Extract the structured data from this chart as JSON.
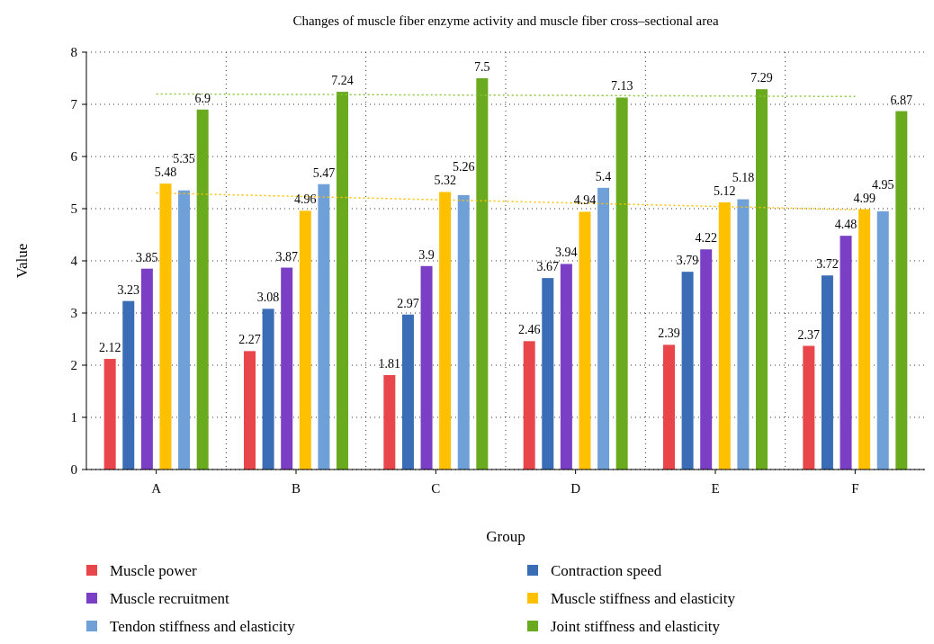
{
  "chart_data": {
    "type": "bar",
    "title": "Changes of muscle fiber enzyme activity and muscle fiber cross–sectional area",
    "xlabel": "Group",
    "ylabel": "Value",
    "categories": [
      "A",
      "B",
      "C",
      "D",
      "E",
      "F"
    ],
    "ylim": [
      0,
      8
    ],
    "yticks": [
      0,
      1,
      2,
      3,
      4,
      5,
      6,
      7,
      8
    ],
    "grid": true,
    "legend": "bottom",
    "series": [
      {
        "name": "Muscle power",
        "color": "#e8464a",
        "values": [
          2.12,
          2.27,
          1.81,
          2.46,
          2.39,
          2.37
        ],
        "value_labels": [
          "2.12",
          "2.27",
          "1.81",
          "2.46",
          "2.39",
          "2.37"
        ]
      },
      {
        "name": "Contraction speed",
        "color": "#3a6db5",
        "values": [
          3.23,
          3.08,
          2.97,
          3.67,
          3.79,
          3.72
        ],
        "value_labels": [
          "3.23",
          "3.08",
          "2.97",
          "3.67",
          "3.79",
          "3.72"
        ]
      },
      {
        "name": "Muscle recruitment",
        "color": "#7a3fc4",
        "values": [
          3.85,
          3.87,
          3.9,
          3.94,
          4.22,
          4.48
        ],
        "value_labels": [
          "3.85",
          "3.87",
          "3.9",
          "3.94",
          "4.22",
          "4.48"
        ]
      },
      {
        "name": "Muscle stiffness and elasticity",
        "color": "#ffc000",
        "values": [
          5.48,
          4.96,
          5.32,
          4.94,
          5.12,
          4.99
        ],
        "value_labels": [
          "5.48",
          "4.96",
          "5.32",
          "4.94",
          "5.12",
          "4.99"
        ]
      },
      {
        "name": "Tendon stiffness and elasticity",
        "color": "#6fa0d8",
        "values": [
          5.35,
          5.47,
          5.26,
          5.4,
          5.18,
          4.95
        ],
        "value_labels": [
          "5.35",
          "5.47",
          "5.26",
          "5.4",
          "5.18",
          "4.95"
        ]
      },
      {
        "name": "Joint stiffness and elasticity",
        "color": "#6aaa1e",
        "values": [
          6.9,
          7.24,
          7.5,
          7.13,
          7.29,
          6.87
        ],
        "value_labels": [
          "6.9",
          "7.24",
          "7.5",
          "7.13",
          "7.29",
          "6.87"
        ]
      },
      {
        "type": "line",
        "x": [
          "A",
          "F"
        ],
        "color": "#ffc000",
        "line_style": "dotted",
        "values": [
          5.3,
          4.98
        ]
      },
      {
        "type": "line",
        "x": [
          "A",
          "F"
        ],
        "color": "#8bc63e",
        "line_style": "dotted",
        "values": [
          7.2,
          7.15
        ]
      }
    ]
  }
}
